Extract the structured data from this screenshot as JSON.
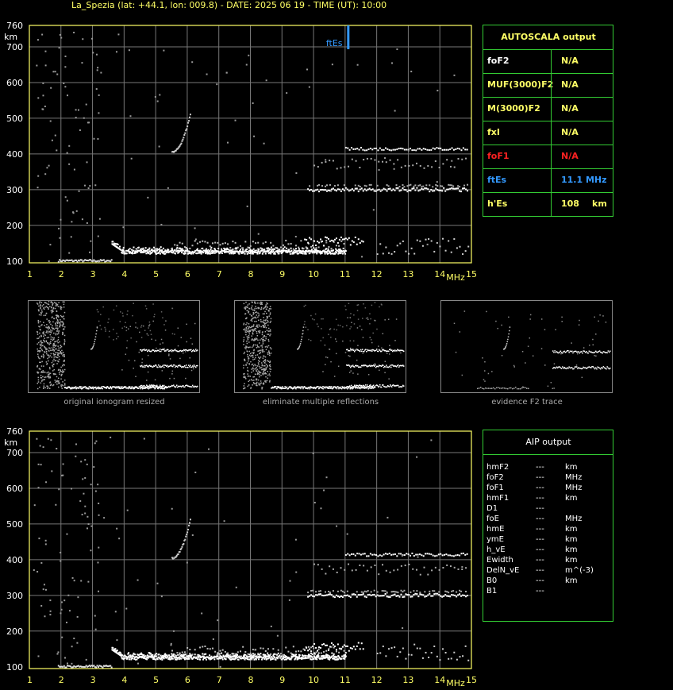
{
  "header": {
    "title": "La_Spezia (lat: +44.1, lon: 009.8) - DATE: 2025 06 19 - TIME (UT): 10:00"
  },
  "chart_data": [
    {
      "type": "scatter",
      "name": "ionogram-main",
      "title": "",
      "xlabel": "MHz",
      "ylabel": "km",
      "xlim": [
        1,
        15
      ],
      "ylim": [
        95,
        760
      ],
      "x_ticks": [
        "1",
        "2",
        "3",
        "4",
        "5",
        "6",
        "7",
        "8",
        "9",
        "10",
        "11",
        "12",
        "13",
        "14",
        "15"
      ],
      "y_ticks": [
        "100",
        "200",
        "300",
        "400",
        "500",
        "600",
        "700",
        "760"
      ],
      "grid": true,
      "annotation": {
        "text": "ftEs",
        "freq": 11.1
      },
      "traces": [
        {
          "from": [
            3.6,
            150
          ],
          "to": [
            10.8,
            122
          ]
        },
        {
          "from": [
            5.5,
            405
          ],
          "to": [
            6.1,
            520
          ]
        },
        {
          "from": [
            9.8,
            300
          ],
          "to": [
            14.9,
            295
          ]
        },
        {
          "from": [
            11.0,
            418
          ],
          "to": [
            14.9,
            418
          ]
        },
        {
          "from": [
            10.0,
            380
          ],
          "to": [
            14.9,
            370
          ]
        }
      ]
    },
    {
      "type": "scatter",
      "name": "ionogram-aip",
      "title": "",
      "xlabel": "MHz",
      "ylabel": "km",
      "xlim": [
        1,
        15
      ],
      "ylim": [
        95,
        760
      ],
      "x_ticks": [
        "1",
        "2",
        "3",
        "4",
        "5",
        "6",
        "7",
        "8",
        "9",
        "10",
        "11",
        "12",
        "13",
        "14",
        "15"
      ],
      "y_ticks": [
        "100",
        "200",
        "300",
        "400",
        "500",
        "600",
        "700",
        "760"
      ],
      "grid": true
    }
  ],
  "autoscala": {
    "title": "AUTOSCALA output",
    "rows": [
      {
        "key": "foF2",
        "value": "N/A",
        "key_color": "#ffffff",
        "value_color": "#ffff66"
      },
      {
        "key": "MUF(3000)F2",
        "value": "N/A",
        "key_color": "#ffff66",
        "value_color": "#ffff66"
      },
      {
        "key": "M(3000)F2",
        "value": "N/A",
        "key_color": "#ffff66",
        "value_color": "#ffff66"
      },
      {
        "key": "fxI",
        "value": "N/A",
        "key_color": "#ffff66",
        "value_color": "#ffff66"
      },
      {
        "key": "foF1",
        "value": "N/A",
        "key_color": "#ff2222",
        "value_color": "#ff2222"
      },
      {
        "key": "ftEs",
        "value": "11.1  MHz",
        "key_color": "#3399ff",
        "value_color": "#3399ff"
      },
      {
        "key": "h'Es",
        "value": "108",
        "unit": "km",
        "key_color": "#ffff66",
        "value_color": "#ffff66"
      }
    ]
  },
  "thumbnails": [
    {
      "caption": "original ionogram resized"
    },
    {
      "caption": "eliminate multiple reflections"
    },
    {
      "caption": "evidence F2 trace"
    }
  ],
  "aip": {
    "title": "AIP output",
    "rows": [
      {
        "param": "hmF2",
        "value": "---",
        "unit": "km"
      },
      {
        "param": "foF2",
        "value": "---",
        "unit": "MHz"
      },
      {
        "param": "foF1",
        "value": "---",
        "unit": "MHz"
      },
      {
        "param": "hmF1",
        "value": "---",
        "unit": "km"
      },
      {
        "param": "D1",
        "value": "---",
        "unit": ""
      },
      {
        "param": "foE",
        "value": "---",
        "unit": "MHz"
      },
      {
        "param": "hmE",
        "value": "---",
        "unit": "km"
      },
      {
        "param": "ymE",
        "value": "---",
        "unit": "km"
      },
      {
        "param": "h_vE",
        "value": "---",
        "unit": "km"
      },
      {
        "param": "Ewidth",
        "value": "---",
        "unit": "km"
      },
      {
        "param": "DelN_vE",
        "value": "---",
        "unit": "m^(-3)"
      },
      {
        "param": "B0",
        "value": "---",
        "unit": "km"
      },
      {
        "param": "B1",
        "value": "---",
        "unit": ""
      }
    ]
  },
  "colors": {
    "axis": "#ffff66",
    "grid": "#777777",
    "panel_border": "#33cc33",
    "ftEs_marker": "#3399ff"
  }
}
